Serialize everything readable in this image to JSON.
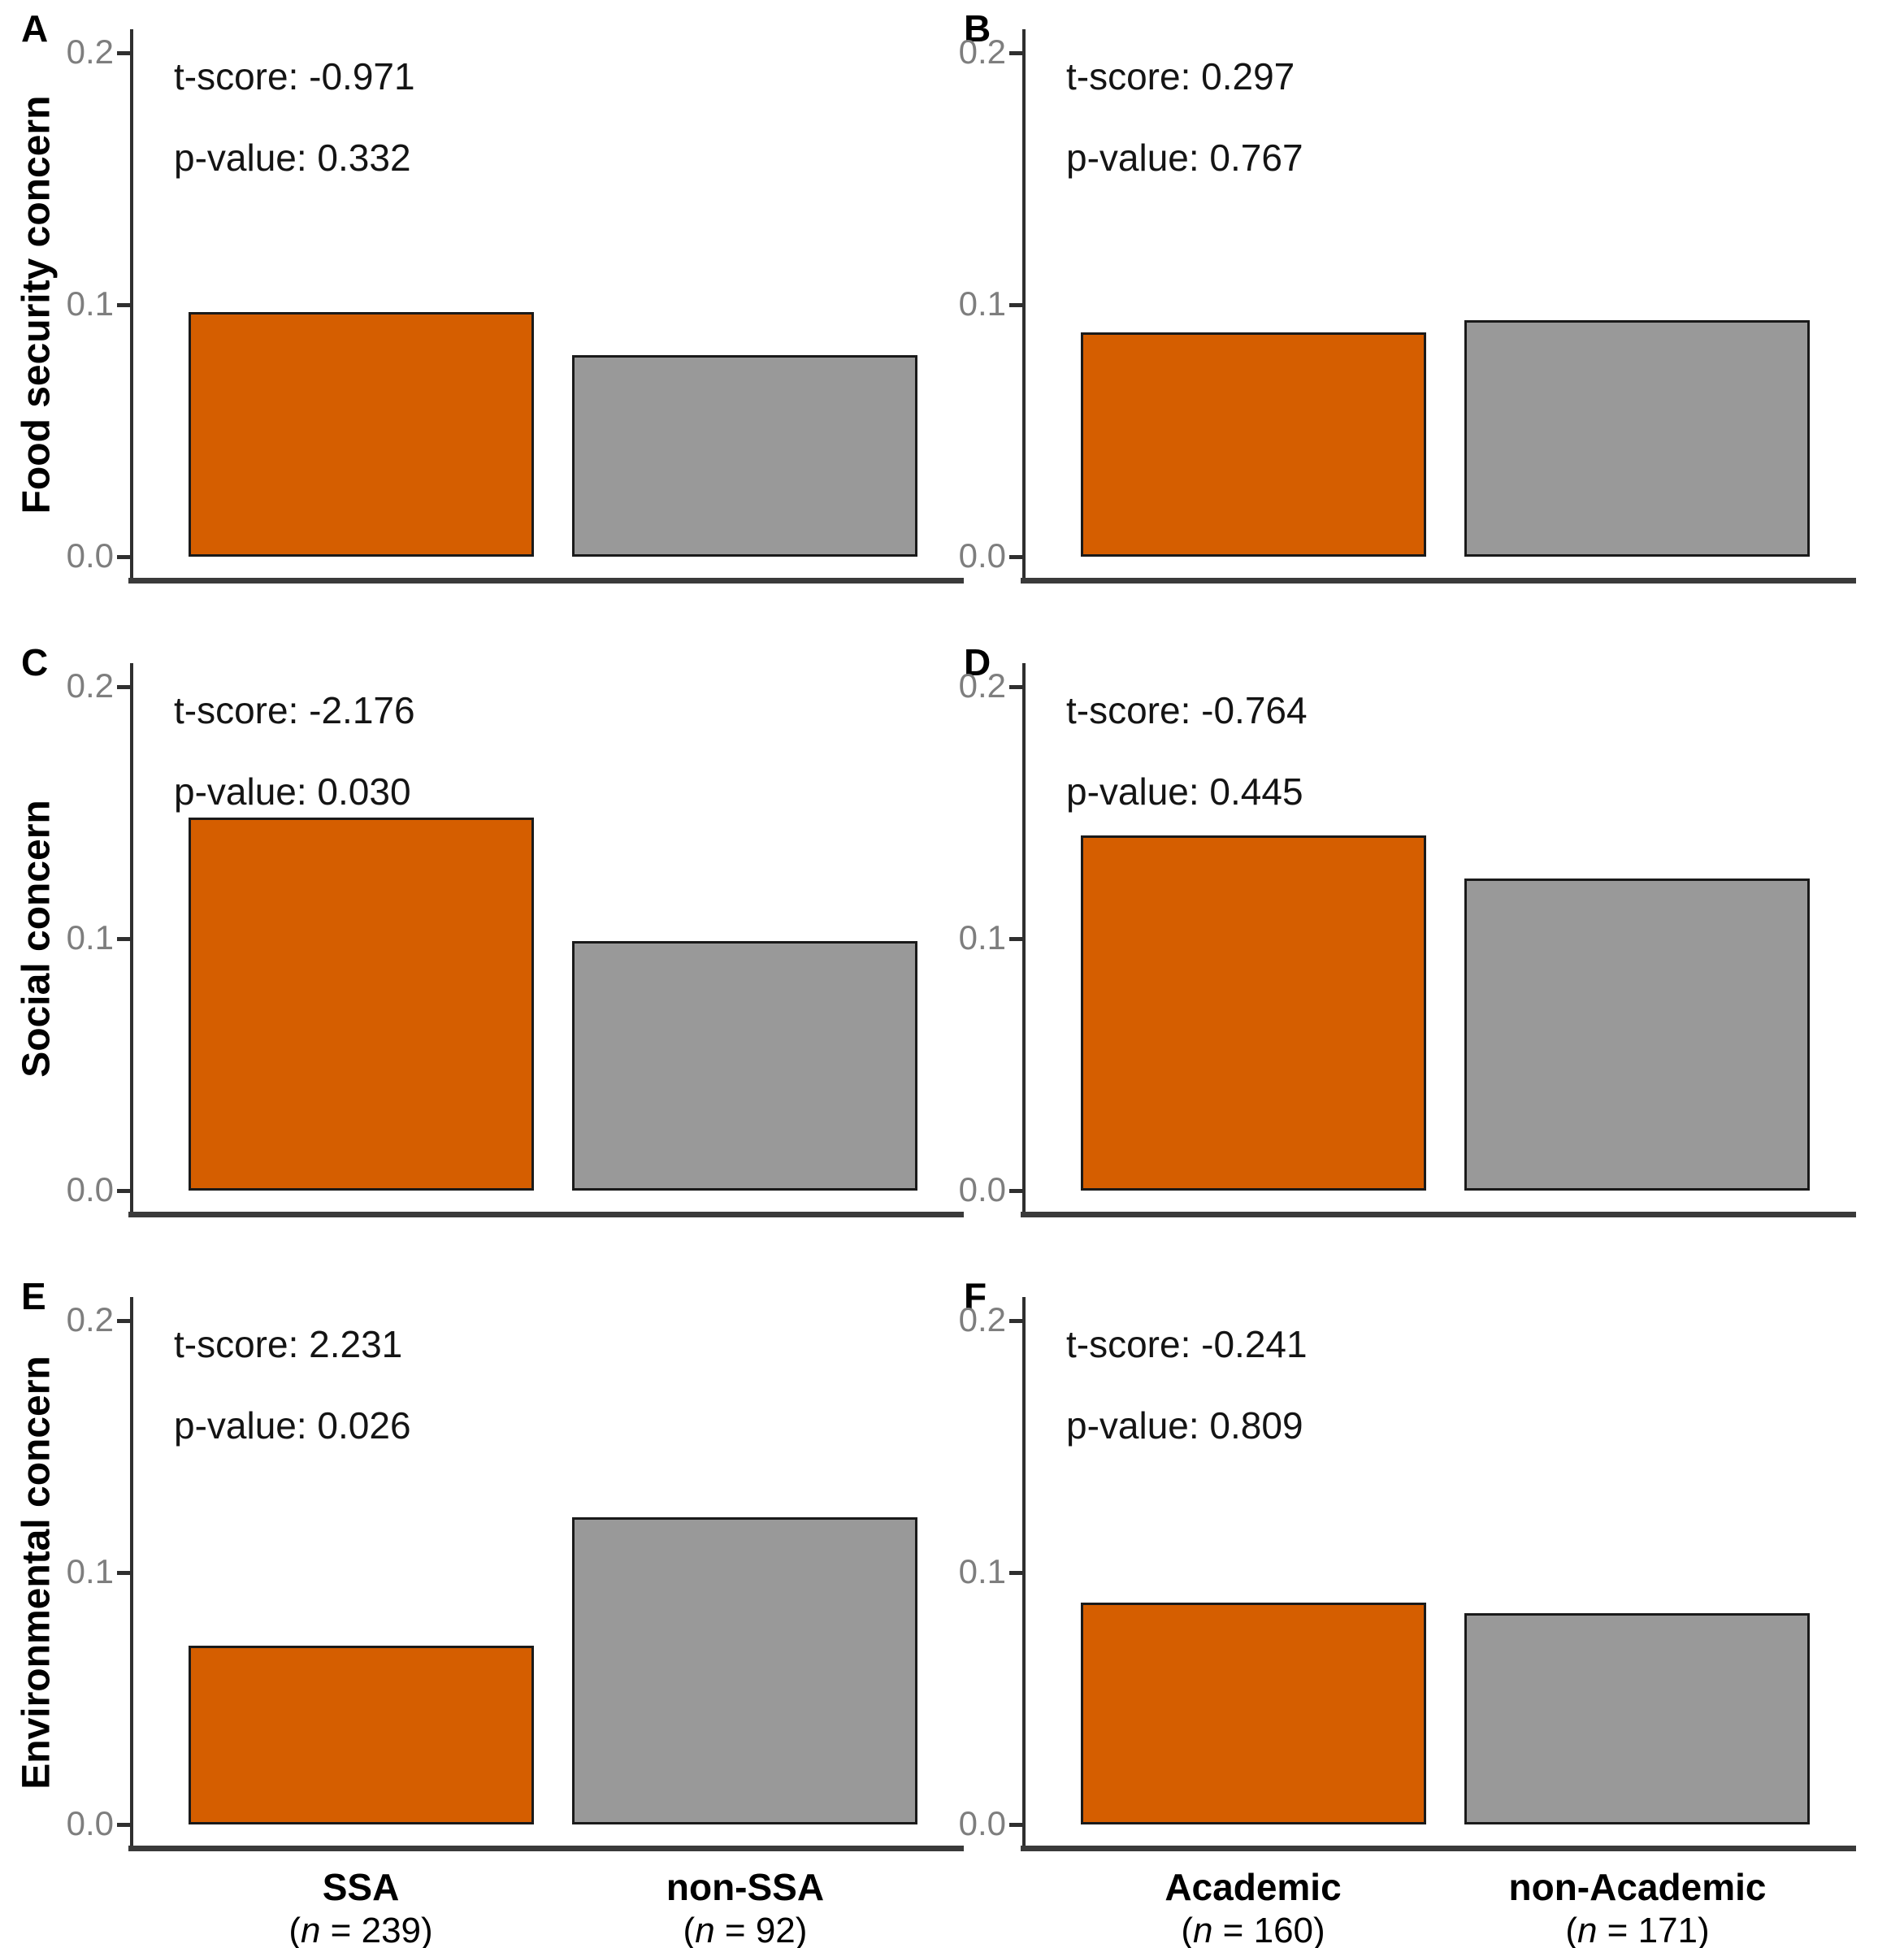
{
  "colors": {
    "bar_primary": "#D55E00",
    "bar_secondary": "#999999",
    "bar_border": "#1a1a1a",
    "axis": "#2f2f2f",
    "tick_label": "#7e7e7e"
  },
  "y_axis": {
    "ticks": [
      "0.0",
      "0.1",
      "0.2"
    ],
    "limits": [
      0,
      0.2
    ]
  },
  "rows": [
    {
      "label": "Food security concern"
    },
    {
      "label": "Social concern"
    },
    {
      "label": "Environmental concern"
    }
  ],
  "columns": [
    {
      "categories": [
        {
          "name": "SSA",
          "n_open": "(",
          "n_var": "n",
          "n_rest": " = 239)"
        },
        {
          "name": "non-SSA",
          "n_open": "(",
          "n_var": "n",
          "n_rest": " = 92)"
        }
      ]
    },
    {
      "categories": [
        {
          "name": "Academic",
          "n_open": "(",
          "n_var": "n",
          "n_rest": " = 160)"
        },
        {
          "name": "non-Academic",
          "n_open": "(",
          "n_var": "n",
          "n_rest": " = 171)"
        }
      ]
    }
  ],
  "panels": [
    {
      "letter": "A",
      "t_line": "t-score: -0.971",
      "p_line": "p-value: 0.332",
      "values": [
        0.097,
        0.08
      ]
    },
    {
      "letter": "B",
      "t_line": "t-score: 0.297",
      "p_line": "p-value: 0.767",
      "values": [
        0.089,
        0.094
      ]
    },
    {
      "letter": "C",
      "t_line": "t-score: -2.176",
      "p_line": "p-value: 0.030",
      "values": [
        0.148,
        0.099
      ]
    },
    {
      "letter": "D",
      "t_line": "t-score: -0.764",
      "p_line": "p-value: 0.445",
      "values": [
        0.141,
        0.124
      ]
    },
    {
      "letter": "E",
      "t_line": "t-score: 2.231",
      "p_line": "p-value: 0.026",
      "values": [
        0.071,
        0.122
      ]
    },
    {
      "letter": "F",
      "t_line": "t-score: -0.241",
      "p_line": "p-value: 0.809",
      "values": [
        0.088,
        0.084
      ]
    }
  ],
  "chart_data": [
    {
      "type": "bar",
      "panel": "A",
      "ylabel": "Food security concern",
      "categories": [
        "SSA (n = 239)",
        "non-SSA (n = 92)"
      ],
      "values": [
        0.097,
        0.08
      ],
      "bar_colors": [
        "#D55E00",
        "#999999"
      ],
      "ylim": [
        0,
        0.2
      ],
      "yticks": [
        0.0,
        0.1,
        0.2
      ],
      "annotations": [
        "t-score: -0.971",
        "p-value: 0.332"
      ],
      "grid": false,
      "legend": "none"
    },
    {
      "type": "bar",
      "panel": "B",
      "ylabel": "Food security concern",
      "categories": [
        "Academic (n = 160)",
        "non-Academic (n = 171)"
      ],
      "values": [
        0.089,
        0.094
      ],
      "bar_colors": [
        "#D55E00",
        "#999999"
      ],
      "ylim": [
        0,
        0.2
      ],
      "yticks": [
        0.0,
        0.1,
        0.2
      ],
      "annotations": [
        "t-score: 0.297",
        "p-value: 0.767"
      ],
      "grid": false,
      "legend": "none"
    },
    {
      "type": "bar",
      "panel": "C",
      "ylabel": "Social concern",
      "categories": [
        "SSA (n = 239)",
        "non-SSA (n = 92)"
      ],
      "values": [
        0.148,
        0.099
      ],
      "bar_colors": [
        "#D55E00",
        "#999999"
      ],
      "ylim": [
        0,
        0.2
      ],
      "yticks": [
        0.0,
        0.1,
        0.2
      ],
      "annotations": [
        "t-score: -2.176",
        "p-value: 0.030"
      ],
      "grid": false,
      "legend": "none"
    },
    {
      "type": "bar",
      "panel": "D",
      "ylabel": "Social concern",
      "categories": [
        "Academic (n = 160)",
        "non-Academic (n = 171)"
      ],
      "values": [
        0.141,
        0.124
      ],
      "bar_colors": [
        "#D55E00",
        "#999999"
      ],
      "ylim": [
        0,
        0.2
      ],
      "yticks": [
        0.0,
        0.1,
        0.2
      ],
      "annotations": [
        "t-score: -0.764",
        "p-value: 0.445"
      ],
      "grid": false,
      "legend": "none"
    },
    {
      "type": "bar",
      "panel": "E",
      "ylabel": "Environmental concern",
      "categories": [
        "SSA (n = 239)",
        "non-SSA (n = 92)"
      ],
      "values": [
        0.071,
        0.122
      ],
      "bar_colors": [
        "#D55E00",
        "#999999"
      ],
      "ylim": [
        0,
        0.2
      ],
      "yticks": [
        0.0,
        0.1,
        0.2
      ],
      "annotations": [
        "t-score: 2.231",
        "p-value: 0.026"
      ],
      "grid": false,
      "legend": "none"
    },
    {
      "type": "bar",
      "panel": "F",
      "ylabel": "Environmental concern",
      "categories": [
        "Academic (n = 160)",
        "non-Academic (n = 171)"
      ],
      "values": [
        0.088,
        0.084
      ],
      "bar_colors": [
        "#D55E00",
        "#999999"
      ],
      "ylim": [
        0,
        0.2
      ],
      "yticks": [
        0.0,
        0.1,
        0.2
      ],
      "annotations": [
        "t-score: -0.241",
        "p-value: 0.809"
      ],
      "grid": false,
      "legend": "none"
    }
  ]
}
